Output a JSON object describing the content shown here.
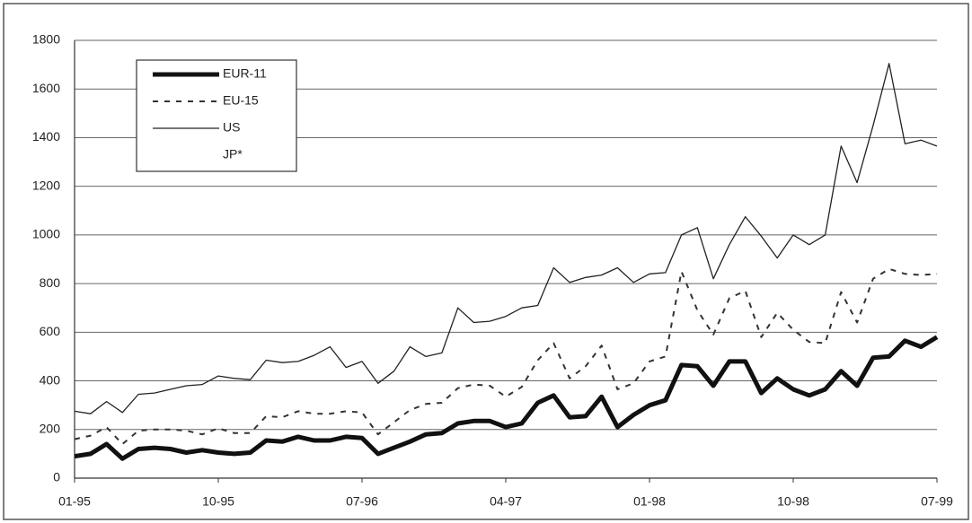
{
  "chart_data": {
    "type": "line",
    "categories": [
      "01-95",
      null,
      null,
      null,
      null,
      null,
      null,
      null,
      null,
      "10-95",
      null,
      null,
      null,
      null,
      null,
      null,
      null,
      null,
      "07-96",
      null,
      null,
      null,
      null,
      null,
      null,
      null,
      null,
      "04-97",
      null,
      null,
      null,
      null,
      null,
      null,
      null,
      null,
      "01-98",
      null,
      null,
      null,
      null,
      null,
      null,
      null,
      null,
      "10-98",
      null,
      null,
      null,
      null,
      null,
      null,
      null,
      null,
      "07-99"
    ],
    "series": [
      {
        "name": "EUR-11",
        "color": "#111111",
        "width": 5,
        "dash": false,
        "values": [
          90,
          100,
          140,
          80,
          120,
          125,
          120,
          105,
          115,
          105,
          100,
          105,
          155,
          150,
          170,
          155,
          155,
          170,
          165,
          100,
          125,
          150,
          180,
          185,
          225,
          235,
          235,
          210,
          225,
          310,
          340,
          250,
          255,
          335,
          210,
          260,
          300,
          320,
          465,
          460,
          380,
          480,
          480,
          350,
          410,
          365,
          340,
          365,
          440,
          380,
          495,
          500,
          565,
          540,
          580
        ]
      },
      {
        "name": "EU-15",
        "color": "#333333",
        "width": 2,
        "dash": true,
        "values": [
          160,
          175,
          210,
          140,
          195,
          200,
          200,
          195,
          180,
          205,
          185,
          185,
          255,
          250,
          275,
          265,
          265,
          275,
          270,
          180,
          230,
          280,
          305,
          310,
          370,
          385,
          380,
          335,
          375,
          485,
          555,
          410,
          460,
          545,
          365,
          390,
          480,
          500,
          850,
          690,
          590,
          740,
          770,
          580,
          680,
          610,
          560,
          555,
          765,
          640,
          820,
          860,
          840,
          835,
          840
        ]
      },
      {
        "name": "US",
        "color": "#222222",
        "width": 1.3,
        "dash": false,
        "values": [
          275,
          265,
          315,
          270,
          345,
          350,
          365,
          380,
          385,
          420,
          410,
          405,
          485,
          475,
          480,
          505,
          540,
          455,
          480,
          390,
          440,
          540,
          500,
          515,
          700,
          640,
          645,
          665,
          700,
          710,
          865,
          805,
          825,
          835,
          865,
          805,
          840,
          845,
          1000,
          1030,
          820,
          960,
          1075,
          995,
          905,
          1000,
          960,
          1000,
          1365,
          1215,
          1450,
          1705,
          1375,
          1390,
          1365
        ]
      },
      {
        "name": "JP*",
        "color": "#ffffff",
        "width": 1,
        "dash": false,
        "values": [
          null,
          null,
          null,
          null,
          null,
          null,
          null,
          null,
          null,
          null,
          null,
          null,
          null,
          null,
          null,
          null,
          null,
          null,
          null,
          null,
          null,
          null,
          null,
          null,
          null,
          null,
          null,
          null,
          null,
          null,
          null,
          null,
          null,
          null,
          null,
          null,
          null,
          null,
          null,
          null,
          null,
          null,
          null,
          null,
          null,
          null,
          null,
          null,
          null,
          null,
          null,
          null,
          null,
          null,
          null
        ]
      }
    ],
    "ylim": [
      0,
      1800
    ],
    "yticks": [
      0,
      200,
      400,
      600,
      800,
      1000,
      1200,
      1400,
      1600,
      1800
    ],
    "grid": true,
    "legend": "upper left"
  }
}
